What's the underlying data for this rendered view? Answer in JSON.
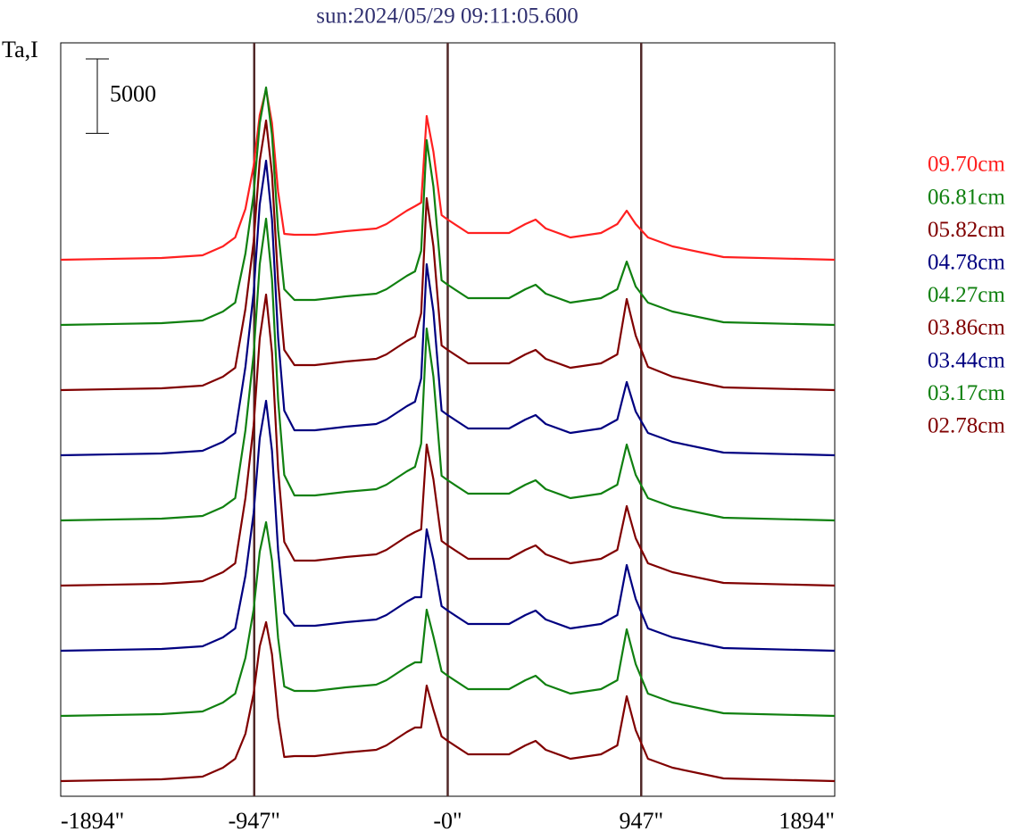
{
  "chart_data": {
    "type": "line",
    "title": "sun:2024/05/29 09:11:05.600",
    "y_label": "Ta,I",
    "scale_bar": 5000,
    "x": [
      -1894,
      -1400,
      -1200,
      -1100,
      -1040,
      -990,
      -950,
      -920,
      -889,
      -860,
      -830,
      -800,
      -750,
      -650,
      -500,
      -350,
      -300,
      -200,
      -160,
      -130,
      -103,
      -70,
      -30,
      0,
      100,
      300,
      380,
      430,
      480,
      600,
      750,
      830,
      876,
      920,
      980,
      1100,
      1350,
      1894
    ],
    "xlim": [
      -1894,
      1894
    ],
    "xticks": [
      {
        "value": -1894,
        "label": "-1894\""
      },
      {
        "value": -947,
        "label": "-947\""
      },
      {
        "value": 0,
        "label": "-0\""
      },
      {
        "value": 947,
        "label": "947\""
      },
      {
        "value": 1894,
        "label": "1894\""
      }
    ],
    "vlines": [
      -947,
      0,
      947
    ],
    "vline_color": "#502828",
    "ylim": [
      0,
      50640
    ],
    "series": [
      {
        "name": "09.70cm",
        "color": "#ff2020",
        "values": [
          36060,
          36180,
          36360,
          36960,
          37560,
          39480,
          42360,
          45780,
          47520,
          45240,
          40620,
          37800,
          37740,
          37740,
          37980,
          38160,
          38460,
          39360,
          39660,
          39900,
          45720,
          43320,
          39060,
          38760,
          37860,
          37860,
          38460,
          38760,
          38160,
          37560,
          37860,
          38460,
          39360,
          38460,
          37560,
          36960,
          36240,
          36060
        ]
      },
      {
        "name": "06.81cm",
        "color": "#108010",
        "values": [
          31680,
          31800,
          31980,
          32580,
          33180,
          36480,
          40440,
          45240,
          47640,
          44460,
          38040,
          34080,
          33360,
          33360,
          33600,
          33780,
          34080,
          34980,
          35280,
          36660,
          44100,
          40980,
          34680,
          34380,
          33480,
          33480,
          34080,
          34380,
          33780,
          33180,
          33480,
          34080,
          35940,
          34260,
          33180,
          32580,
          31860,
          31680
        ]
      },
      {
        "name": "05.82cm",
        "color": "#800000",
        "values": [
          27300,
          27420,
          27600,
          28200,
          28800,
          32760,
          37260,
          42720,
          45420,
          41820,
          34560,
          30000,
          28980,
          28980,
          29220,
          29400,
          29700,
          30600,
          30900,
          32460,
          40200,
          36960,
          30300,
          30000,
          29100,
          29100,
          29700,
          30000,
          29400,
          28800,
          29100,
          29700,
          33420,
          30960,
          28860,
          28200,
          27480,
          27300
        ]
      },
      {
        "name": "04.78cm",
        "color": "#000080",
        "values": [
          22920,
          23040,
          23220,
          23820,
          24420,
          28860,
          33840,
          39780,
          42720,
          38760,
          30840,
          25920,
          24600,
          24600,
          24840,
          25020,
          25320,
          26220,
          26520,
          28080,
          35760,
          32580,
          25920,
          25620,
          24720,
          24720,
          25320,
          25620,
          25020,
          24420,
          24720,
          25320,
          27840,
          25860,
          24420,
          23820,
          23100,
          22920
        ]
      },
      {
        "name": "04.27cm",
        "color": "#108010",
        "values": [
          18540,
          18660,
          18840,
          19440,
          20040,
          24600,
          29700,
          35760,
          38820,
          34740,
          26640,
          21600,
          20220,
          20220,
          20460,
          20640,
          20940,
          21840,
          22140,
          23700,
          31440,
          28200,
          21540,
          21240,
          20340,
          20340,
          20940,
          21240,
          20640,
          20040,
          20340,
          20940,
          23640,
          21600,
          20040,
          19440,
          18720,
          18540
        ]
      },
      {
        "name": "03.86cm",
        "color": "#800000",
        "values": [
          14160,
          14280,
          14460,
          15060,
          15660,
          20040,
          24900,
          30780,
          33720,
          29820,
          21960,
          17100,
          15840,
          15840,
          16080,
          16260,
          16560,
          17460,
          17760,
          17940,
          23640,
          21300,
          17160,
          16860,
          15960,
          15960,
          16560,
          16860,
          16260,
          15660,
          15960,
          16560,
          19500,
          17340,
          15660,
          15060,
          14340,
          14160
        ]
      },
      {
        "name": "03.44cm",
        "color": "#000080",
        "values": [
          9780,
          9900,
          10080,
          10680,
          11280,
          14820,
          19020,
          24060,
          26580,
          23220,
          16500,
          12300,
          11460,
          11460,
          11700,
          11880,
          12180,
          13080,
          13380,
          13380,
          17940,
          15900,
          12780,
          12480,
          11580,
          11580,
          12180,
          12480,
          11880,
          11280,
          11580,
          12180,
          15540,
          13260,
          11280,
          10680,
          9960,
          9780
        ]
      },
      {
        "name": "03.17cm",
        "color": "#108010",
        "values": [
          5400,
          5520,
          5700,
          6300,
          6900,
          9300,
          12540,
          16440,
          18420,
          15840,
          10620,
          7380,
          7080,
          7080,
          7320,
          7500,
          7800,
          8700,
          9000,
          9000,
          12540,
          10740,
          8400,
          8100,
          7200,
          7200,
          7800,
          8100,
          7500,
          6900,
          7200,
          7800,
          11220,
          8880,
          6900,
          6300,
          5580,
          5400
        ]
      },
      {
        "name": "02.78cm",
        "color": "#800000",
        "values": [
          1020,
          1140,
          1320,
          1920,
          2520,
          4200,
          6900,
          10080,
          11700,
          9540,
          5280,
          2640,
          2700,
          2700,
          2940,
          3120,
          3420,
          4320,
          4620,
          4620,
          7440,
          5820,
          4020,
          3720,
          2820,
          2820,
          3420,
          3720,
          3120,
          2520,
          2820,
          3420,
          6720,
          4440,
          2520,
          1920,
          1200,
          1020
        ]
      }
    ]
  }
}
